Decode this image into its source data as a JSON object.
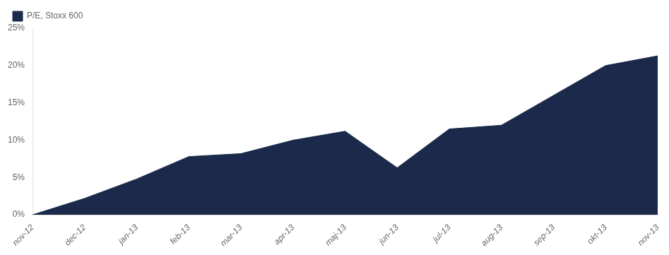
{
  "chart_data": {
    "type": "area",
    "categories": [
      "nov-12",
      "dec-12",
      "jan-13",
      "feb-13",
      "mar-13",
      "apr-13",
      "maj-13",
      "jun-13",
      "jul-13",
      "aug-13",
      "sep-13",
      "okt-13",
      "nov-13"
    ],
    "series": [
      {
        "name": "P/E, Stoxx 600",
        "color": "#1b2a4a",
        "values": [
          0.0,
          2.2,
          4.8,
          7.8,
          8.2,
          10.0,
          11.2,
          6.3,
          11.5,
          12.0,
          16.0,
          20.0,
          21.3
        ]
      }
    ],
    "ylim": [
      0,
      25
    ],
    "yticks": [
      {
        "value": 0,
        "label": "0%"
      },
      {
        "value": 5,
        "label": "5%"
      },
      {
        "value": 10,
        "label": "10%"
      },
      {
        "value": 15,
        "label": "15%"
      },
      {
        "value": 20,
        "label": "20%"
      },
      {
        "value": 25,
        "label": "25%"
      }
    ],
    "grid": false,
    "legend": "upper left"
  }
}
